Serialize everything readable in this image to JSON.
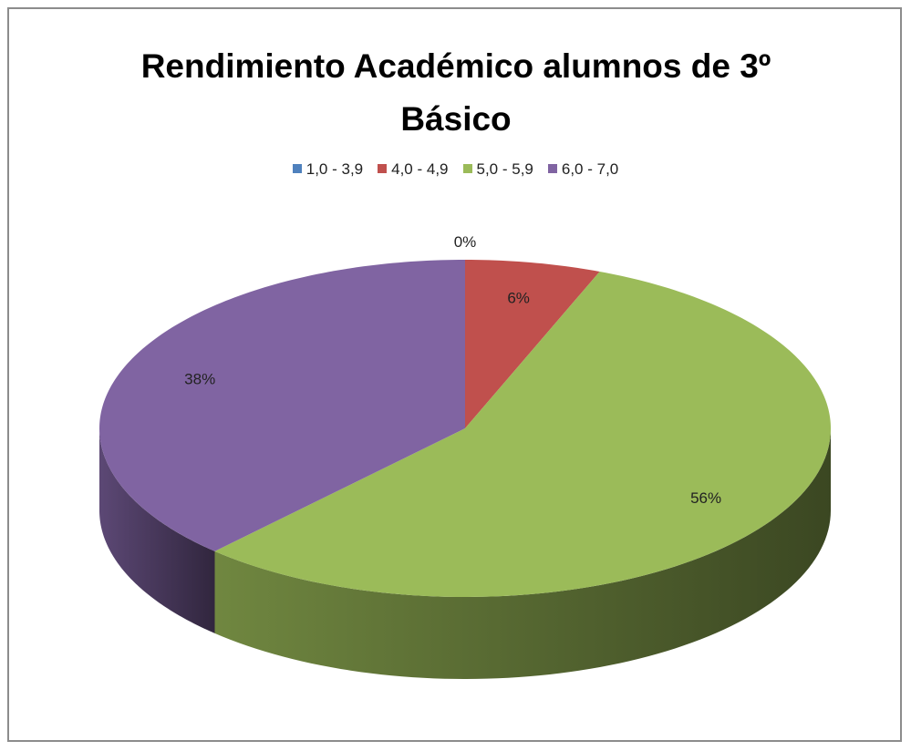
{
  "chart_data": {
    "type": "pie",
    "title": "Rendimiento Académico alumnos de 3º Básico",
    "categories": [
      "1,0 - 3,9",
      "4,0 - 4,9",
      "5,0 - 5,9",
      "6,0 - 7,0"
    ],
    "values": [
      0,
      6,
      56,
      38
    ],
    "value_labels": [
      "0%",
      "6%",
      "56%",
      "38%"
    ],
    "colors": [
      "#4f81bd",
      "#c0504d",
      "#9bbb59",
      "#8064a2"
    ],
    "legend": "top"
  }
}
